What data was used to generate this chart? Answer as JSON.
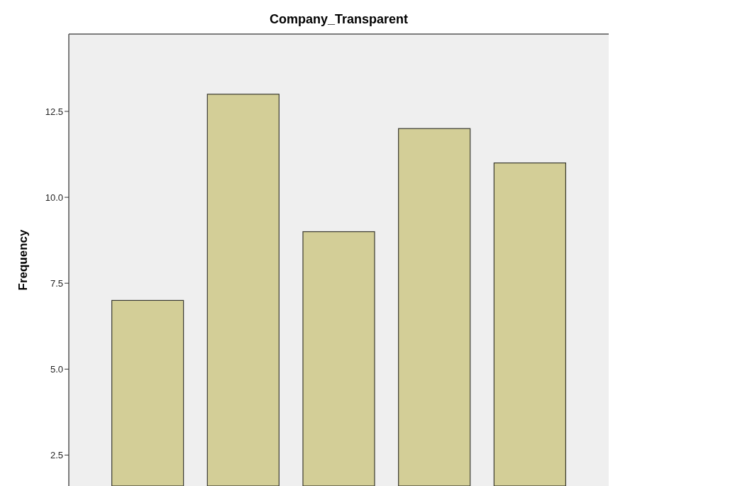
{
  "chart_data": {
    "type": "bar",
    "title": "Company_Transparent",
    "ylabel": "Frequency",
    "categories": [
      null,
      null,
      null,
      null,
      null
    ],
    "values": [
      7,
      13,
      9,
      12,
      11
    ],
    "color": "#d3ce97",
    "ylim": [
      1.6,
      14.75
    ],
    "yticks": [
      {
        "value": 2.5,
        "label": "2.5"
      },
      {
        "value": 5,
        "label": "5.0"
      },
      {
        "value": 7.5,
        "label": "7.5"
      },
      {
        "value": 10,
        "label": "10.0"
      },
      {
        "value": 12.5,
        "label": "12.5"
      }
    ],
    "grid": false,
    "tick_labels": "y"
  }
}
